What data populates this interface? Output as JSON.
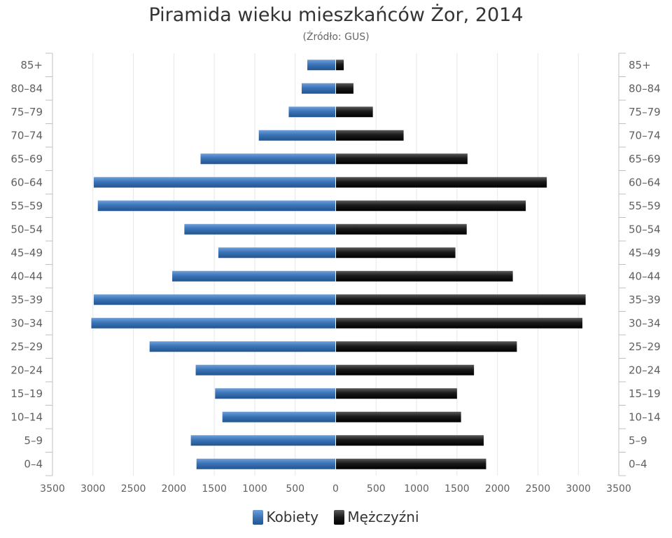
{
  "chart_data": {
    "type": "bar",
    "orientation": "horizontal",
    "title": "Piramida wieku mieszkańców Żor, 2014",
    "subtitle": "(Źródło: GUS)",
    "categories": [
      "0–4",
      "5–9",
      "10–14",
      "15–19",
      "20–24",
      "25–29",
      "30–34",
      "35–39",
      "40–44",
      "45–49",
      "50–54",
      "55–59",
      "60–64",
      "65–69",
      "70–74",
      "75–79",
      "80–84",
      "85+"
    ],
    "series": [
      {
        "name": "Kobiety",
        "color": "#3a74b8",
        "values": [
          1720,
          1790,
          1400,
          1490,
          1730,
          2300,
          3020,
          2990,
          2020,
          1450,
          1870,
          2940,
          2990,
          1670,
          950,
          580,
          420,
          350
        ]
      },
      {
        "name": "Mężczyźni",
        "color": "#1a1a1a",
        "values": [
          1860,
          1830,
          1550,
          1500,
          1710,
          2240,
          3050,
          3090,
          2190,
          1480,
          1620,
          2350,
          2610,
          1630,
          840,
          460,
          220,
          100
        ]
      }
    ],
    "xaxis_ticks": [
      "3500",
      "3000",
      "2500",
      "2000",
      "1500",
      "1000",
      "500",
      "0",
      "500",
      "1000",
      "1500",
      "2000",
      "2500",
      "3000",
      "3500"
    ],
    "xlim": [
      -3500,
      3500
    ],
    "grid": true,
    "legend": "bottom-center"
  }
}
